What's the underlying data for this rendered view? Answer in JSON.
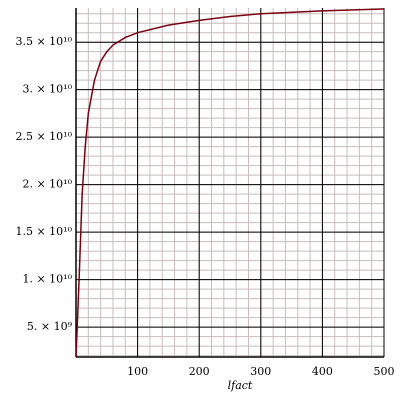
{
  "chart_data": {
    "type": "line",
    "x_label": "lfact",
    "x": [
      0,
      2,
      5,
      10,
      15,
      20,
      30,
      40,
      50,
      60,
      80,
      100,
      150,
      200,
      250,
      300,
      400,
      500
    ],
    "series": [
      {
        "color": "#7a0010",
        "values": [
          1900000000,
          5000000000,
          10000000000,
          19000000000,
          24000000000,
          27500000000,
          31000000000,
          33000000000,
          34000000000,
          34700000000,
          35500000000,
          36000000000,
          36800000000,
          37300000000,
          37700000000,
          38000000000,
          38300000000,
          38500000000
        ]
      }
    ],
    "xlim": [
      0,
      500
    ],
    "xticks": [
      100,
      200,
      300,
      400,
      500
    ],
    "ylim": [
      1850000000,
      38600000000
    ],
    "yticks": [
      {
        "value": 5000000000,
        "label": "5. × 10⁹"
      },
      {
        "value": 10000000000,
        "label": "1. × 10¹⁰"
      },
      {
        "value": 15000000000,
        "label": "1.5 × 10¹⁰"
      },
      {
        "value": 20000000000,
        "label": "2. × 10¹⁰"
      },
      {
        "value": 25000000000,
        "label": "2.5 × 10¹⁰"
      },
      {
        "value": 30000000000,
        "label": "3. × 10¹⁰"
      },
      {
        "value": 35000000000,
        "label": "3.5 × 10¹⁰"
      }
    ],
    "grid": true,
    "minor_grid": true
  }
}
